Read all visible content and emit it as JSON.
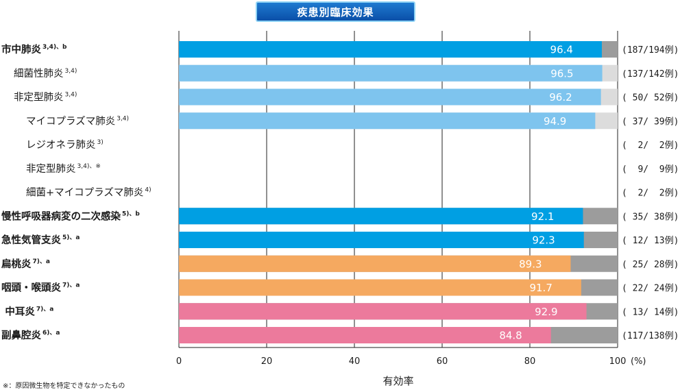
{
  "title": "疾患別臨床効果",
  "footnote": "※：原因微生物を特定できなかったもの",
  "chart_data": {
    "type": "bar",
    "orientation": "horizontal",
    "xlabel": "有効率",
    "xunit": "(%)",
    "xlim": [
      0,
      100
    ],
    "xticks": [
      0,
      20,
      40,
      60,
      80,
      100
    ],
    "grid": true,
    "colors": {
      "blue": "#009fe3",
      "lightblue": "#7ec4ee",
      "orange": "#f5a960",
      "pink": "#ec7a9c",
      "remainder_dark": "#9c9c9c",
      "remainder_light": "#dcdcdc"
    },
    "rows": [
      {
        "label": "市中肺炎",
        "sup": "3,4)、b",
        "bold": true,
        "indent": 0,
        "value": 96.4,
        "value_label": "96.4",
        "count": "(187/194例)",
        "color": "blue",
        "remainder": "remainder_dark"
      },
      {
        "label": "細菌性肺炎",
        "sup": "3,4)",
        "bold": false,
        "indent": 1,
        "value": 96.5,
        "value_label": "96.5",
        "count": "(137/142例)",
        "color": "lightblue",
        "remainder": "remainder_light"
      },
      {
        "label": "非定型肺炎",
        "sup": "3,4)",
        "bold": false,
        "indent": 1,
        "value": 96.2,
        "value_label": "96.2",
        "count": "( 50/ 52例)",
        "color": "lightblue",
        "remainder": "remainder_light"
      },
      {
        "label": "マイコプラズマ肺炎",
        "sup": "3,4)",
        "bold": false,
        "indent": 2,
        "value": 94.9,
        "value_label": "94.9",
        "count": "( 37/ 39例)",
        "color": "lightblue",
        "remainder": "remainder_light"
      },
      {
        "label": "レジオネラ肺炎",
        "sup": "3)",
        "bold": false,
        "indent": 2,
        "value": null,
        "value_label": "",
        "count": "(  2/  2例)",
        "color": "",
        "remainder": ""
      },
      {
        "label": "非定型肺炎",
        "sup": "3,4)、※",
        "bold": false,
        "indent": 2,
        "value": null,
        "value_label": "",
        "count": "(  9/  9例)",
        "color": "",
        "remainder": ""
      },
      {
        "label": "細菌+マイコプラズマ肺炎",
        "sup": "4)",
        "bold": false,
        "indent": 2,
        "value": null,
        "value_label": "",
        "count": "(  2/  2例)",
        "color": "",
        "remainder": ""
      },
      {
        "label": "慢性呼吸器病変の二次感染",
        "sup": "5)、b",
        "bold": true,
        "indent": 0,
        "value": 92.1,
        "value_label": "92.1",
        "count": "( 35/ 38例)",
        "color": "blue",
        "remainder": "remainder_dark"
      },
      {
        "label": "急性気管支炎",
        "sup": "5)、a",
        "bold": true,
        "indent": 0,
        "value": 92.3,
        "value_label": "92.3",
        "count": "( 12/ 13例)",
        "color": "blue",
        "remainder": "remainder_dark"
      },
      {
        "label": "扁桃炎",
        "sup": "7)、a",
        "bold": true,
        "indent": 0,
        "value": 89.3,
        "value_label": "89.3",
        "count": "( 25/ 28例)",
        "color": "orange",
        "remainder": "remainder_dark"
      },
      {
        "label": "咽頭・喉頭炎",
        "sup": "7)、a",
        "bold": true,
        "indent": 0,
        "value": 91.7,
        "value_label": "91.7",
        "count": "( 22/ 24例)",
        "color": "orange",
        "remainder": "remainder_dark"
      },
      {
        "label": "中耳炎",
        "sup": "7)、a",
        "bold": true,
        "indent": 0.3,
        "value": 92.9,
        "value_label": "92.9",
        "count": "( 13/ 14例)",
        "color": "pink",
        "remainder": "remainder_dark"
      },
      {
        "label": "副鼻腔炎",
        "sup": "6)、a",
        "bold": true,
        "indent": 0,
        "value": 84.8,
        "value_label": "84.8",
        "count": "(117/138例)",
        "color": "pink",
        "remainder": "remainder_dark"
      }
    ]
  }
}
